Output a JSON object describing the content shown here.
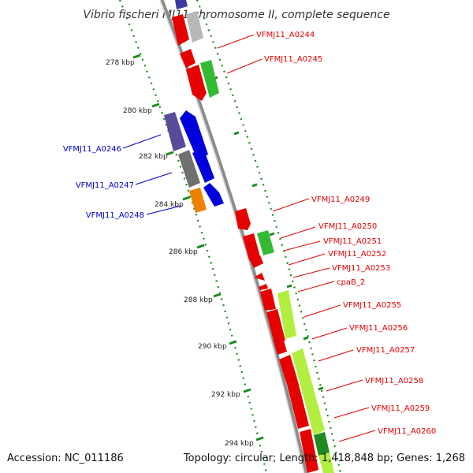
{
  "title": "Vibrio fischeri MJ11 chromosome II, complete sequence",
  "footer": {
    "accession": "Accession: NC_011186",
    "topology": "Topology: circular; Length: 1,418,848 bp; Genes: 1,268"
  },
  "colors": {
    "backbone": "#909090",
    "tick": "#1a8a1a",
    "forward_label": "#e00000",
    "reverse_label": "#0000cc"
  },
  "kbp_ticks": [
    {
      "label": "278 kbp",
      "kbp": 278
    },
    {
      "label": "280 kbp",
      "kbp": 280
    },
    {
      "label": "282 kbp",
      "kbp": 282
    },
    {
      "label": "284 kbp",
      "kbp": 284
    },
    {
      "label": "286 kbp",
      "kbp": 286
    },
    {
      "label": "288 kbp",
      "kbp": 288
    },
    {
      "label": "290 kbp",
      "kbp": 290
    },
    {
      "label": "292 kbp",
      "kbp": 292
    },
    {
      "label": "294 kbp",
      "kbp": 294
    }
  ],
  "genes": [
    {
      "label": "VFMJ11_A0244",
      "strand": "forward",
      "color": "#e00000"
    },
    {
      "label": "VFMJ11_A0245",
      "strand": "forward",
      "color": "#e00000"
    },
    {
      "label": "VFMJ11_A0246",
      "strand": "reverse",
      "color": "#0000cc"
    },
    {
      "label": "VFMJ11_A0247",
      "strand": "reverse",
      "color": "#0000cc"
    },
    {
      "label": "VFMJ11_A0248",
      "strand": "reverse",
      "color": "#0000cc"
    },
    {
      "label": "VFMJ11_A0249",
      "strand": "forward",
      "color": "#e00000"
    },
    {
      "label": "VFMJ11_A0250",
      "strand": "forward",
      "color": "#e00000"
    },
    {
      "label": "VFMJ11_A0251",
      "strand": "forward",
      "color": "#e00000"
    },
    {
      "label": "VFMJ11_A0252",
      "strand": "forward",
      "color": "#e00000"
    },
    {
      "label": "VFMJ11_A0253",
      "strand": "forward",
      "color": "#e00000"
    },
    {
      "label": "cpaB_2",
      "strand": "forward",
      "color": "#e00000"
    },
    {
      "label": "VFMJ11_A0255",
      "strand": "forward",
      "color": "#e00000"
    },
    {
      "label": "VFMJ11_A0256",
      "strand": "forward",
      "color": "#e00000"
    },
    {
      "label": "VFMJ11_A0257",
      "strand": "forward",
      "color": "#e00000"
    },
    {
      "label": "VFMJ11_A0258",
      "strand": "forward",
      "color": "#e00000"
    },
    {
      "label": "VFMJ11_A0259",
      "strand": "forward",
      "color": "#e00000"
    },
    {
      "label": "VFMJ11_A0260",
      "strand": "forward",
      "color": "#e00000"
    }
  ]
}
